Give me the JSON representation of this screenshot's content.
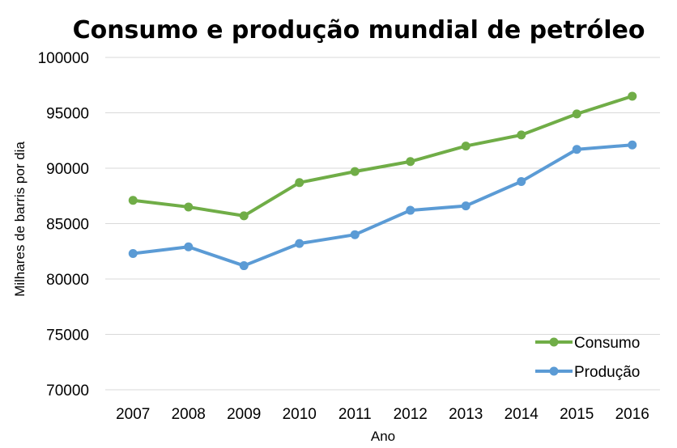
{
  "chart_data": {
    "type": "line",
    "title": "Consumo e produção mundial de petróleo",
    "xlabel": "Ano",
    "ylabel": "Milhares de barris por dia",
    "categories": [
      "2007",
      "2008",
      "2009",
      "2010",
      "2011",
      "2012",
      "2013",
      "2014",
      "2015",
      "2016"
    ],
    "ylim": [
      70000,
      100000
    ],
    "yticks": [
      "70000",
      "75000",
      "80000",
      "85000",
      "90000",
      "95000",
      "100000"
    ],
    "grid": true,
    "legend_position": "bottom-right",
    "series": [
      {
        "name": "Consumo",
        "color": "#70ad47",
        "values": [
          87100,
          86500,
          85700,
          88700,
          89700,
          90600,
          92000,
          93000,
          94900,
          96500
        ]
      },
      {
        "name": "Produção",
        "color": "#5b9bd5",
        "values": [
          82300,
          82900,
          81200,
          83200,
          84000,
          86200,
          86600,
          88800,
          91700,
          92100
        ]
      }
    ]
  }
}
